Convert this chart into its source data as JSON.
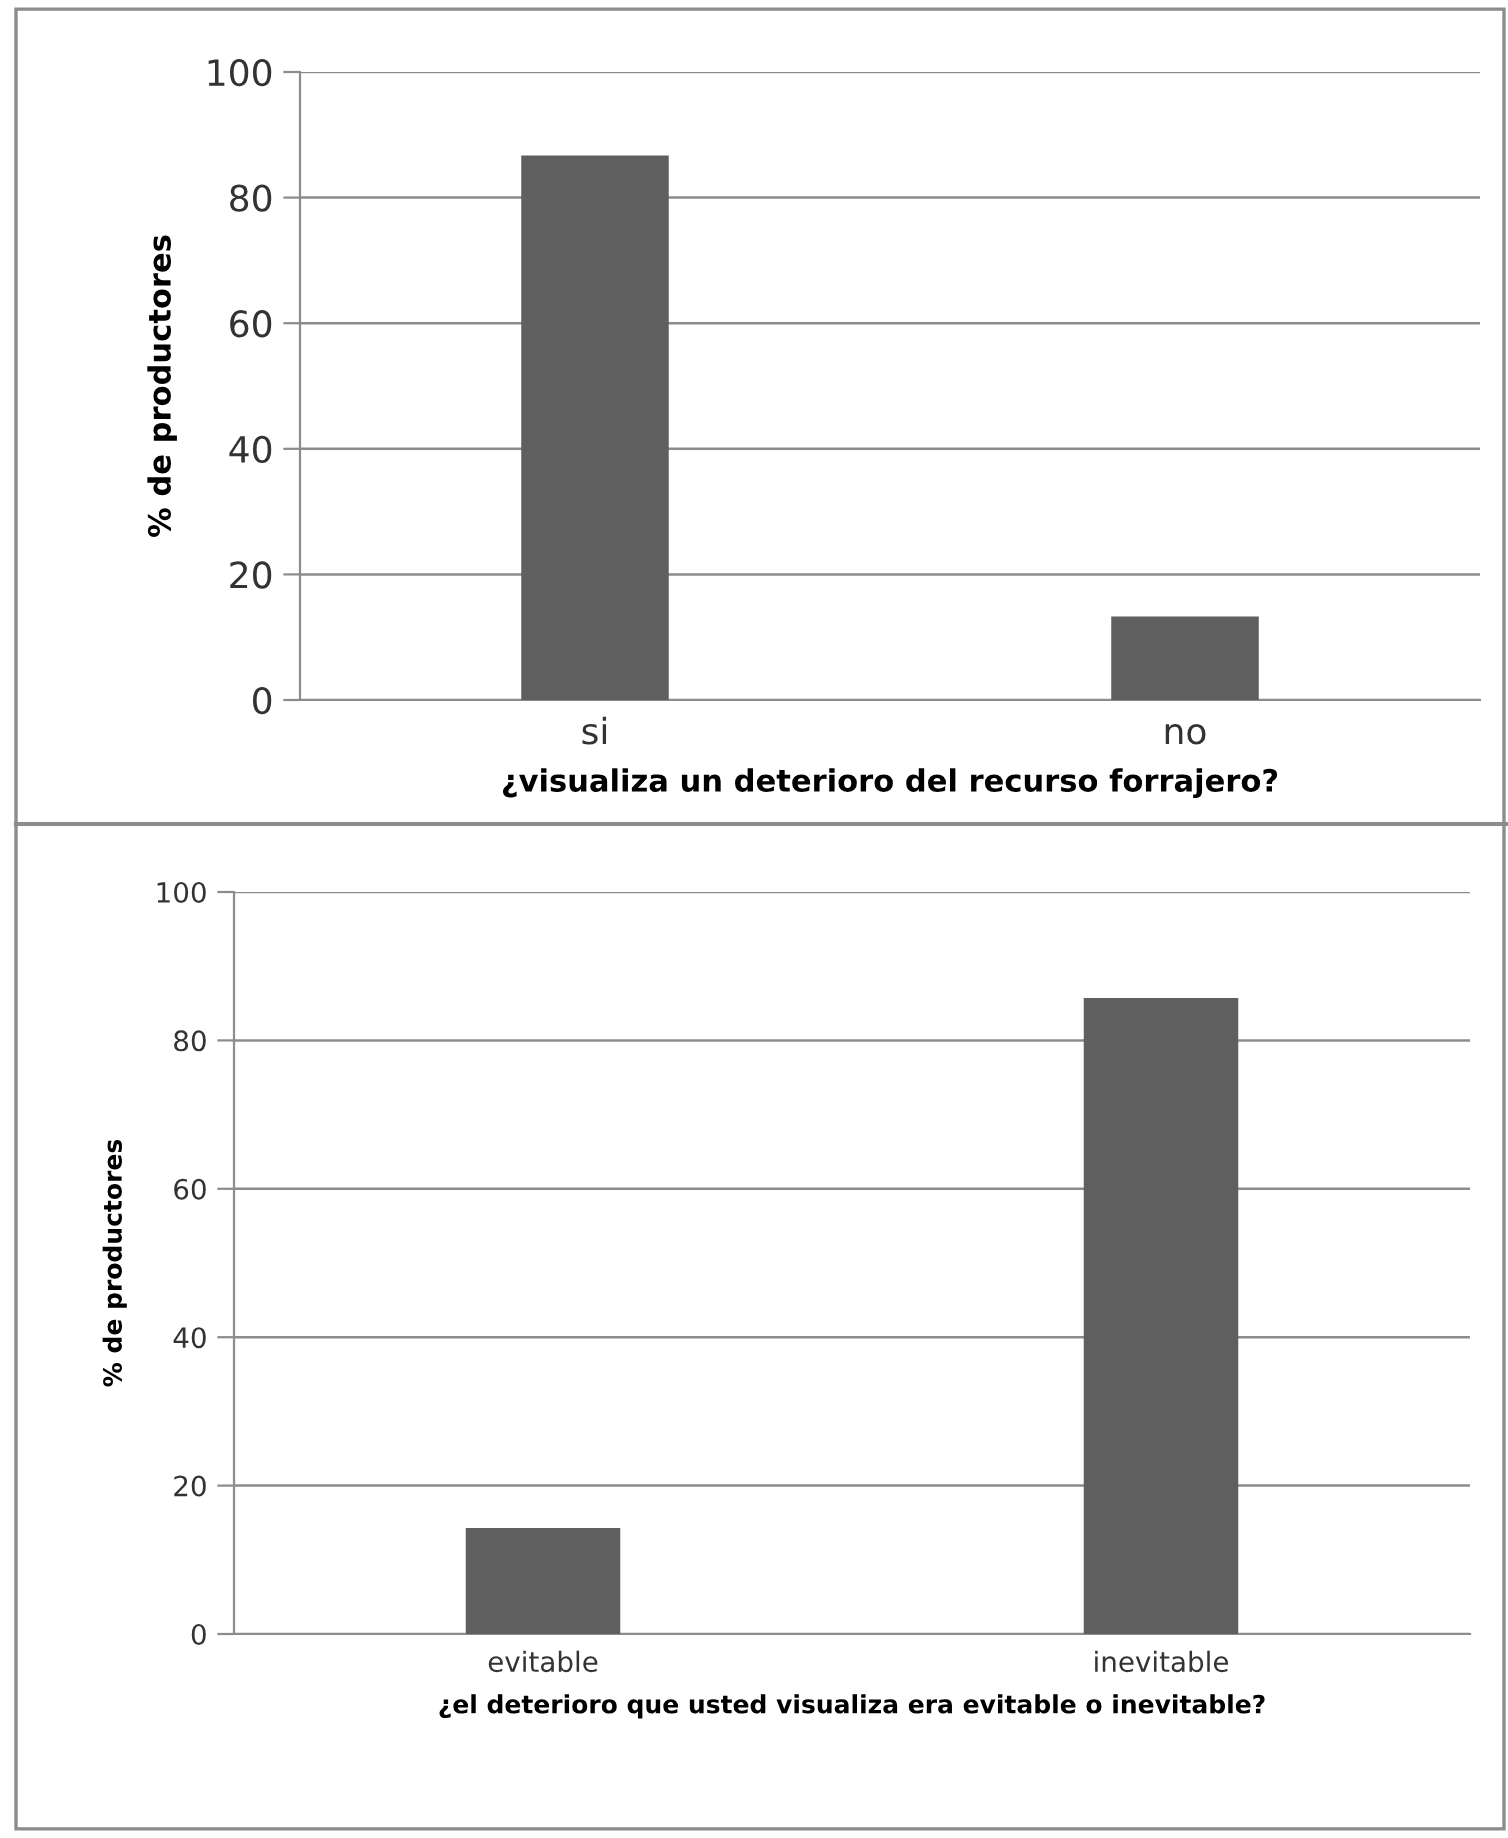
{
  "chart_data": [
    {
      "type": "bar",
      "categories": [
        "si",
        "no"
      ],
      "values": [
        86.7,
        13.3
      ],
      "color": "#5f5f5f",
      "xlabel": "¿visualiza un deterioro del recurso forrajero?",
      "ylabel": "% de productores",
      "ylim": [
        0,
        100
      ],
      "yticks": [
        0,
        20,
        40,
        60,
        80,
        100
      ],
      "grid": "y"
    },
    {
      "type": "bar",
      "categories": [
        "evitable",
        "inevitable"
      ],
      "values": [
        14.3,
        85.7
      ],
      "color": "#5f5f5f",
      "xlabel": "¿el deterioro que usted visualiza era evitable o inevitable?",
      "ylabel": "% de productores",
      "ylim": [
        0,
        100
      ],
      "yticks": [
        0,
        20,
        40,
        60,
        80,
        100
      ],
      "grid": "y"
    }
  ]
}
